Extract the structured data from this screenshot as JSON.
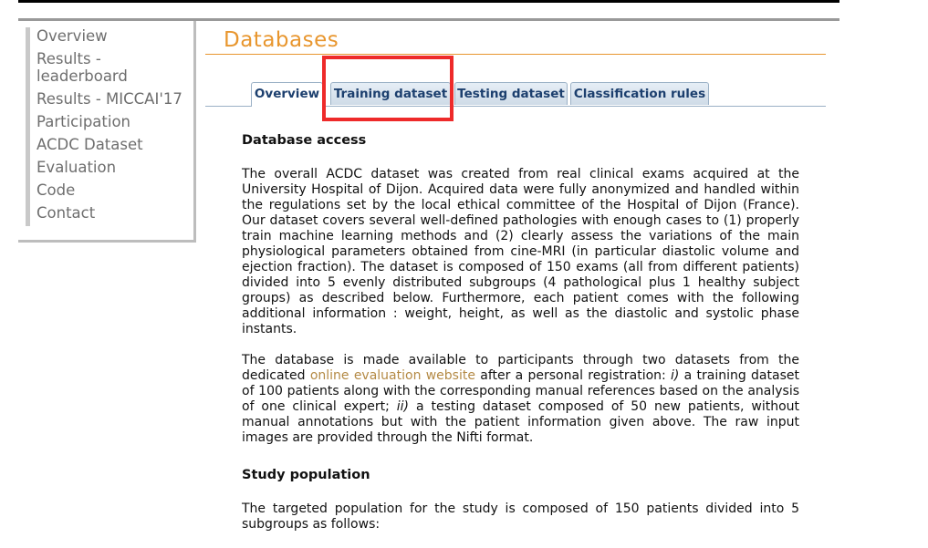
{
  "sidebar": {
    "items": [
      {
        "label": "Overview"
      },
      {
        "label": "Results - leaderboard"
      },
      {
        "label": "Results - MICCAI'17"
      },
      {
        "label": "Participation"
      },
      {
        "label": "ACDC Dataset"
      },
      {
        "label": "Evaluation"
      },
      {
        "label": "Code"
      },
      {
        "label": "Contact"
      }
    ]
  },
  "page": {
    "title": "Databases"
  },
  "tabs": [
    {
      "label": "Overview",
      "active": true
    },
    {
      "label": "Training dataset",
      "highlighted": true
    },
    {
      "label": "Testing dataset"
    },
    {
      "label": "Classification rules"
    }
  ],
  "content": {
    "section1_heading": "Database access",
    "para1": "The overall ACDC dataset was created from real clinical exams acquired at the University Hospital of Dijon. Acquired data were fully anonymized and handled within the regulations set by the local ethical committee of the Hospital of Dijon (France). Our dataset covers several well-defined pathologies with enough cases to (1) properly train machine learning methods and (2) clearly assess the variations of the main physiological parameters obtained from cine-MRI (in particular diastolic volume and ejection fraction). The dataset is composed of 150 exams (all from different patients) divided into 5 evenly distributed subgroups (4 pathological plus 1 healthy subject groups) as described below. Furthermore, each patient comes with the following additional information : weight, height, as well as the diastolic and systolic phase instants.",
    "para2_before_link": "The database is made available to participants through two datasets from the dedicated ",
    "para2_link": "online evaluation website",
    "para2_after_link": " after a personal registration: ",
    "para2_i": "i)",
    "para2_mid1": " a training dataset of 100 patients along with the corresponding manual references based on the analysis of one clinical expert; ",
    "para2_ii": "ii)",
    "para2_mid2": " a testing dataset composed of 50 new patients, without manual annotations but with the patient information given above. The raw input images are provided through the Nifti format.",
    "section2_heading": "Study population",
    "para3": "The targeted population for the study is composed of 150 patients divided into 5 subgroups as follows:"
  },
  "colors": {
    "accent": "#e8962e",
    "tab_text": "#1c3f6e",
    "highlight_box": "#ee2a2a",
    "link": "#b48a45"
  }
}
